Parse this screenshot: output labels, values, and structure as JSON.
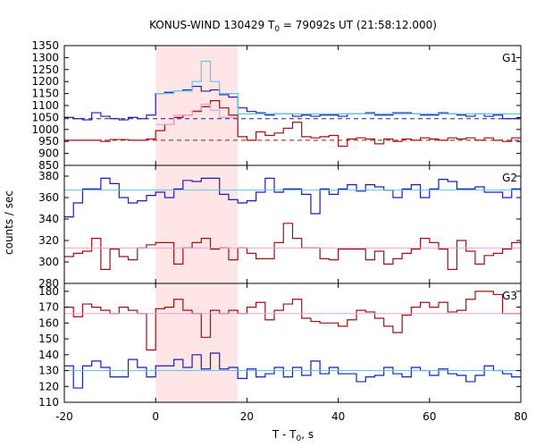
{
  "chart_data": {
    "type": "line",
    "title_parts": {
      "pre": "KONUS-WIND 130429 T",
      "sub": "0",
      "post": " = 79092s UT (21:58:12.000)"
    },
    "xlabel_parts": {
      "pre": "T - T",
      "sub": "0",
      "post": ", s"
    },
    "ylabel": "counts / sec",
    "xlim": [
      -20,
      80
    ],
    "x_ticks": [
      -20,
      0,
      20,
      40,
      60,
      80
    ],
    "highlight_interval": [
      0,
      18
    ],
    "colors": {
      "blue": "#1c1cb4",
      "cyan": "#5bc8f0",
      "red": "#a01010",
      "pink": "#f0a0d8",
      "darkred_dash": "#a01010",
      "darkblue_dash": "#1c1c80",
      "shade": "#ffe6e6"
    },
    "panels": [
      {
        "name": "G1",
        "ylim": [
          850,
          1350
        ],
        "y_ticks": [
          850,
          900,
          950,
          1000,
          1050,
          1100,
          1150,
          1200,
          1250,
          1300,
          1350
        ],
        "series": [
          {
            "color_key": "blue",
            "edges": [
              -20,
              -18,
              -16,
              -14,
              -12,
              -10,
              -8,
              -6,
              -4,
              -2,
              0,
              2,
              4,
              6,
              8,
              10,
              12,
              14,
              16,
              18,
              20,
              22,
              24,
              26,
              28,
              30,
              32,
              34,
              36,
              38,
              40,
              42,
              44,
              46,
              48,
              50,
              52,
              54,
              56,
              58,
              60,
              62,
              64,
              66,
              68,
              70,
              72,
              74,
              76,
              78,
              80
            ],
            "values": [
              1050,
              1045,
              1040,
              1070,
              1055,
              1045,
              1040,
              1050,
              1045,
              1060,
              1150,
              1155,
              1160,
              1165,
              1180,
              1160,
              1165,
              1145,
              1135,
              1090,
              1075,
              1070,
              1060,
              1065,
              1065,
              1055,
              1060,
              1055,
              1060,
              1060,
              1055,
              1065,
              1065,
              1070,
              1060,
              1060,
              1070,
              1070,
              1065,
              1060,
              1060,
              1070,
              1065,
              1060,
              1055,
              1065,
              1055,
              1060,
              1045,
              1045
            ]
          },
          {
            "color_key": "cyan",
            "edges": [
              0,
              4,
              8,
              10,
              12,
              14,
              18,
              80
            ],
            "values": [
              1150,
              1160,
              1200,
              1285,
              1200,
              1150,
              1065
            ]
          },
          {
            "color_key": "red",
            "edges": [
              -20,
              -18,
              -16,
              -14,
              -12,
              -10,
              -8,
              -6,
              -4,
              -2,
              0,
              2,
              4,
              6,
              8,
              10,
              12,
              14,
              16,
              18,
              20,
              22,
              24,
              26,
              28,
              30,
              32,
              34,
              36,
              38,
              40,
              42,
              44,
              46,
              48,
              50,
              52,
              54,
              56,
              58,
              60,
              62,
              64,
              66,
              68,
              70,
              72,
              74,
              76,
              78,
              80
            ],
            "values": [
              955,
              955,
              955,
              955,
              950,
              958,
              958,
              955,
              955,
              960,
              995,
              1020,
              1050,
              1060,
              1075,
              1095,
              1120,
              1090,
              1060,
              970,
              955,
              990,
              975,
              985,
              1005,
              1030,
              970,
              965,
              970,
              975,
              930,
              960,
              965,
              960,
              940,
              960,
              950,
              960,
              955,
              965,
              960,
              955,
              965,
              960,
              965,
              955,
              965,
              955,
              950,
              965
            ]
          },
          {
            "color_key": "pink",
            "edges": [
              0,
              4,
              8,
              10,
              12,
              14,
              18
            ],
            "values": [
              1020,
              1060,
              1080,
              1105,
              1080,
              1050
            ]
          },
          {
            "color_key": "darkred_dash",
            "hline": 955
          },
          {
            "color_key": "darkblue_dash",
            "hline": 1045
          }
        ]
      },
      {
        "name": "G2",
        "ylim": [
          280,
          390
        ],
        "y_ticks": [
          280,
          300,
          320,
          340,
          360,
          380
        ],
        "series": [
          {
            "color_key": "blue",
            "edges": [
              -20,
              -18,
              -16,
              -14,
              -12,
              -10,
              -8,
              -6,
              -4,
              -2,
              0,
              2,
              4,
              6,
              8,
              10,
              12,
              14,
              16,
              18,
              20,
              22,
              24,
              26,
              28,
              30,
              32,
              34,
              36,
              38,
              40,
              42,
              44,
              46,
              48,
              50,
              52,
              54,
              56,
              58,
              60,
              62,
              64,
              66,
              68,
              70,
              72,
              74,
              76,
              78,
              80
            ],
            "values": [
              342,
              355,
              368,
              368,
              378,
              373,
              360,
              355,
              357,
              362,
              365,
              360,
              368,
              376,
              375,
              378,
              378,
              363,
              358,
              355,
              357,
              365,
              378,
              365,
              368,
              368,
              363,
              345,
              368,
              363,
              368,
              372,
              366,
              372,
              370,
              367,
              360,
              368,
              372,
              360,
              368,
              377,
              375,
              368,
              368,
              370,
              365,
              365,
              360,
              368
            ]
          },
          {
            "color_key": "cyan",
            "hline": 367
          },
          {
            "color_key": "red",
            "edges": [
              -20,
              -18,
              -16,
              -14,
              -12,
              -10,
              -8,
              -6,
              -4,
              -2,
              0,
              2,
              4,
              6,
              8,
              10,
              12,
              14,
              16,
              18,
              20,
              22,
              24,
              26,
              28,
              30,
              32,
              34,
              36,
              38,
              40,
              42,
              44,
              46,
              48,
              50,
              52,
              54,
              56,
              58,
              60,
              62,
              64,
              66,
              68,
              70,
              72,
              74,
              76,
              78,
              80
            ],
            "values": [
              305,
              308,
              310,
              322,
              293,
              312,
              305,
              302,
              313,
              316,
              318,
              318,
              298,
              313,
              318,
              322,
              312,
              313,
              302,
              313,
              308,
              303,
              303,
              318,
              336,
              322,
              313,
              313,
              303,
              302,
              312,
              312,
              312,
              302,
              310,
              298,
              303,
              308,
              312,
              322,
              318,
              312,
              293,
              320,
              310,
              298,
              306,
              308,
              312,
              318
            ]
          },
          {
            "color_key": "pink",
            "hline": 313
          }
        ]
      },
      {
        "name": "G3",
        "ylim": [
          110,
          185
        ],
        "y_ticks": [
          110,
          120,
          130,
          140,
          150,
          160,
          170,
          180
        ],
        "series": [
          {
            "color_key": "blue",
            "edges": [
              -20,
              -18,
              -16,
              -14,
              -12,
              -10,
              -8,
              -6,
              -4,
              -2,
              0,
              2,
              4,
              6,
              8,
              10,
              12,
              14,
              16,
              18,
              20,
              22,
              24,
              26,
              28,
              30,
              32,
              34,
              36,
              38,
              40,
              42,
              44,
              46,
              48,
              50,
              52,
              54,
              56,
              58,
              60,
              62,
              64,
              66,
              68,
              70,
              72,
              74,
              76,
              78,
              80
            ],
            "values": [
              133,
              119,
              133,
              136,
              132,
              126,
              126,
              137,
              132,
              126,
              133,
              133,
              137,
              132,
              140,
              131,
              141,
              131,
              132,
              125,
              131,
              126,
              128,
              132,
              126,
              132,
              127,
              136,
              128,
              132,
              128,
              128,
              123,
              126,
              127,
              132,
              128,
              126,
              132,
              130,
              127,
              131,
              128,
              127,
              123,
              127,
              133,
              130,
              128,
              126
            ]
          },
          {
            "color_key": "cyan",
            "hline": 130
          },
          {
            "color_key": "red",
            "edges": [
              -20,
              -18,
              -16,
              -14,
              -12,
              -10,
              -8,
              -6,
              -4,
              -2,
              0,
              2,
              4,
              6,
              8,
              10,
              12,
              14,
              16,
              18,
              20,
              22,
              24,
              26,
              28,
              30,
              32,
              34,
              36,
              38,
              40,
              42,
              44,
              46,
              48,
              50,
              52,
              54,
              56,
              58,
              60,
              62,
              64,
              66,
              68,
              70,
              72,
              74,
              76,
              78,
              80
            ],
            "values": [
              170,
              164,
              172,
              170,
              168,
              166,
              170,
              168,
              166,
              143,
              169,
              170,
              175,
              168,
              166,
              151,
              168,
              166,
              168,
              166,
              170,
              173,
              162,
              168,
              172,
              175,
              163,
              161,
              160,
              160,
              158,
              162,
              168,
              167,
              163,
              158,
              154,
              165,
              170,
              173,
              170,
              173,
              167,
              168,
              175,
              180,
              180,
              178,
              166,
              166
            ]
          },
          {
            "color_key": "pink",
            "hline": 166
          }
        ]
      }
    ]
  }
}
